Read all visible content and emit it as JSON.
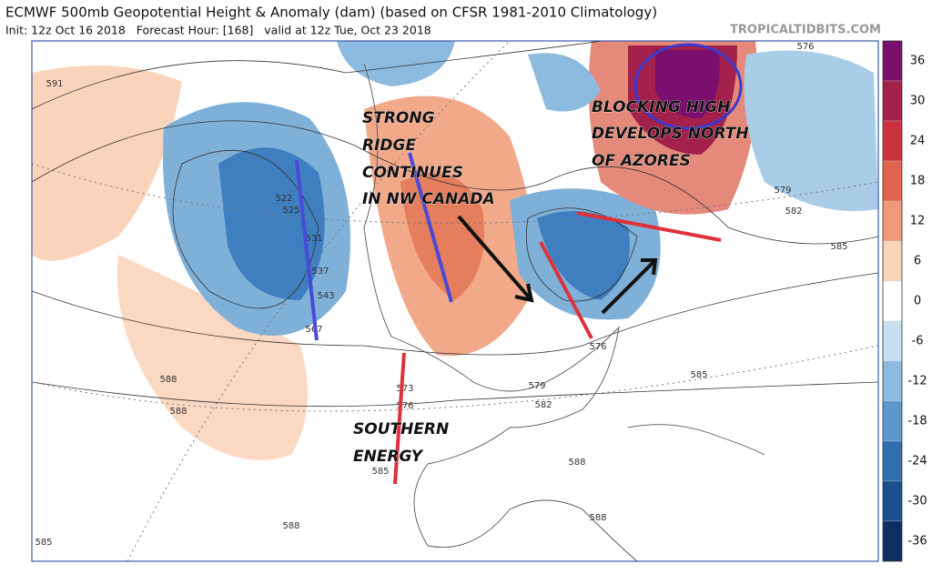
{
  "header": {
    "title": "ECMWF 500mb Geopotential Height & Anomaly (dam) (based on CFSR 1981-2010 Climatology)",
    "subtitle": "Init: 12z Oct 16 2018   Forecast Hour: [168]   valid at 12z Tue, Oct 23 2018",
    "watermark": "TROPICALTIDBITS.COM"
  },
  "annotations": {
    "ridge": [
      "STRONG",
      "RIDGE",
      "CONTINUES",
      "IN NW CANADA"
    ],
    "blocking": [
      "BLOCKING HIGH",
      "DEVELOPS NORTH",
      "OF AZORES"
    ],
    "southern": [
      "SOUTHERN",
      "ENERGY"
    ]
  },
  "colorbar": {
    "ticks": [
      36,
      30,
      24,
      18,
      12,
      6,
      0,
      -6,
      -12,
      -18,
      -24,
      -30,
      -36
    ]
  },
  "contour_labels": [
    591,
    588,
    588,
    585,
    588,
    522,
    525,
    531,
    537,
    543,
    567,
    573,
    576,
    585,
    579,
    582,
    588,
    588,
    576,
    585,
    585,
    582,
    579,
    576
  ]
}
